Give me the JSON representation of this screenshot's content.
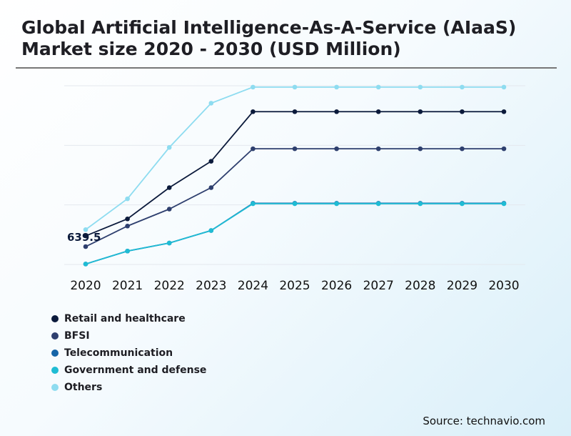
{
  "title": "Global Artificial Intelligence-As-A-Service (AIaaS) Market size 2020 - 2030 (USD Million)",
  "source": "Source: technavio.com",
  "chart_data": {
    "type": "line",
    "x": [
      "2020",
      "2021",
      "2022",
      "2023",
      "2024",
      "2025",
      "2026",
      "2027",
      "2028",
      "2029",
      "2030"
    ],
    "ylim": [
      0,
      4000
    ],
    "grid": true,
    "legend_position": "bottom-left",
    "annotations": [
      {
        "x": "2020",
        "series": "Retail and healthcare",
        "text": "639.5"
      }
    ],
    "series": [
      {
        "name": "Retail and healthcare",
        "color": "#0b1a3b",
        "values": [
          639.5,
          1020,
          1720,
          2310,
          3420,
          3420,
          3420,
          3420,
          3420,
          3420,
          3420
        ]
      },
      {
        "name": "BFSI",
        "color": "#2e3f6e",
        "values": [
          400,
          860,
          1240,
          1720,
          2590,
          2590,
          2590,
          2590,
          2590,
          2590,
          2590
        ]
      },
      {
        "name": "Telecommunication",
        "color": "#1565a8",
        "values": [
          10,
          300,
          480,
          760,
          1370,
          1370,
          1370,
          1370,
          1370,
          1370,
          1370
        ]
      },
      {
        "name": "Government and defense",
        "color": "#1fbcd4",
        "values": [
          10,
          300,
          480,
          760,
          1360,
          1360,
          1360,
          1360,
          1360,
          1360,
          1360
        ]
      },
      {
        "name": "Others",
        "color": "#8edcf0",
        "values": [
          780,
          1470,
          2620,
          3610,
          3970,
          3970,
          3970,
          3970,
          3970,
          3970,
          3970
        ]
      }
    ]
  }
}
